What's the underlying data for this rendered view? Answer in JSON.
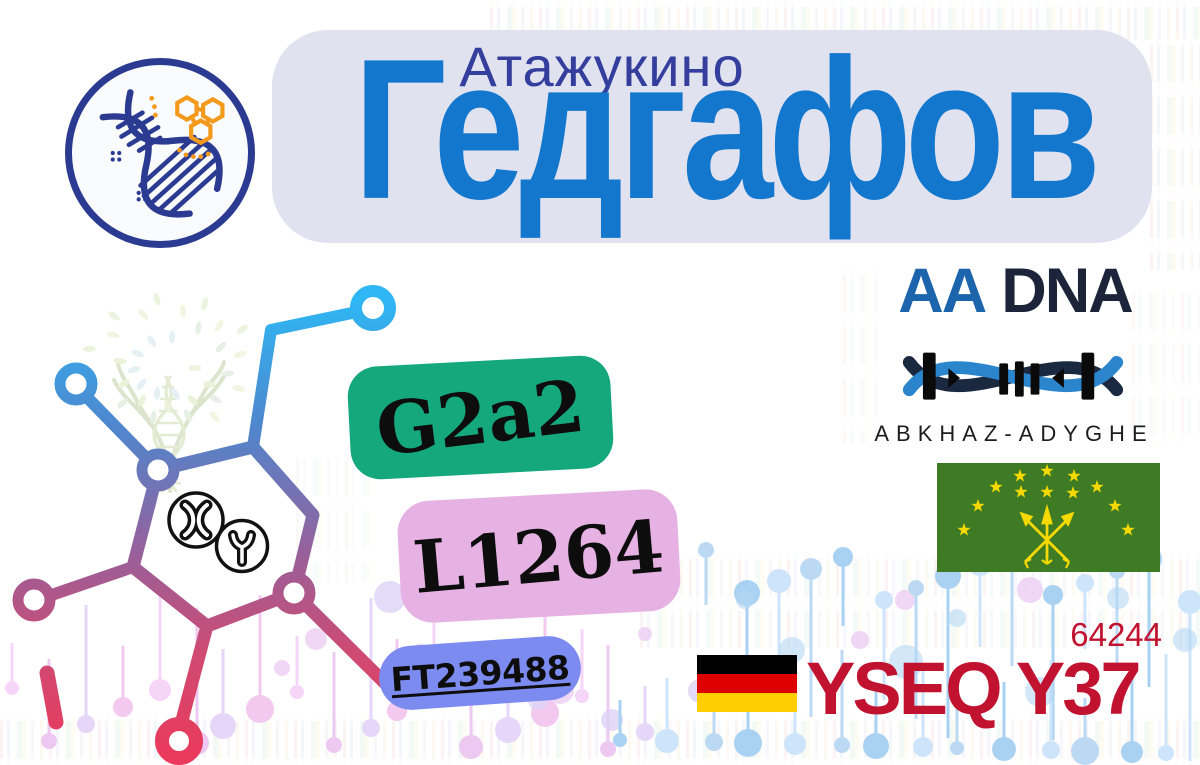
{
  "banner": {
    "location": "Атажукино",
    "surname": "Гедгафов"
  },
  "badges": {
    "haplogroup": "G2a2",
    "subclade": "L1264",
    "terminal_snp": "FT239488"
  },
  "org": {
    "name_aa": "AA",
    "name_dna": "DNA",
    "tagline": "ABKHAZ-ADYGHE"
  },
  "test": {
    "lab_and_panel": "YSEQ Y37",
    "kit_number": "64244"
  },
  "icons": {
    "logo": "dna-helix-icon",
    "molecule": "molecule-network-icon",
    "x_circle": "x-chromosome-icon",
    "y_circle": "y-chromosome-icon",
    "tree": "family-tree-icon",
    "adyghe": "adyghe-flag",
    "germany": "german-flag",
    "org_helix": "dna-strand-logo"
  },
  "colors": {
    "banner_bg": "#e0e2f0",
    "surname_blue": "#1377cd",
    "location_indigo": "#343e9d",
    "badge_green": "#16a87d",
    "badge_pink": "#e6b1e3",
    "badge_periwinkle": "#7c8bf0",
    "yseq_red": "#c11330",
    "adyghe_green": "#3e7b24",
    "adyghe_gold": "#f6d900",
    "germany_stripes": [
      "#000000",
      "#dd0000",
      "#ffce00"
    ],
    "molecule_gradient_top": "#2eb7f4",
    "molecule_gradient_bottom": "#ea3a5c"
  }
}
